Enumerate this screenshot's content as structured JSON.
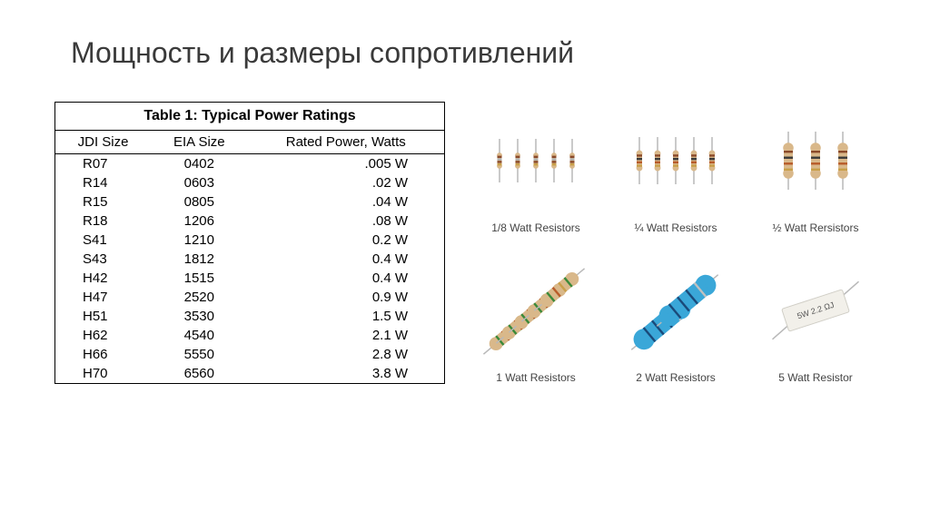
{
  "title": "Мощность и размеры сопротивлений",
  "table": {
    "caption": "Table 1: Typical Power Ratings",
    "columns": [
      "JDI Size",
      "EIA Size",
      "Rated Power, Watts"
    ],
    "rows": [
      [
        "R07",
        "0402",
        ".005 W"
      ],
      [
        "R14",
        "0603",
        ".02 W"
      ],
      [
        "R15",
        "0805",
        ".04 W"
      ],
      [
        "R18",
        "1206",
        ".08 W"
      ],
      [
        "S41",
        "1210",
        "0.2 W"
      ],
      [
        "S43",
        "1812",
        "0.4 W"
      ],
      [
        "H42",
        "1515",
        "0.4 W"
      ],
      [
        "H47",
        "2520",
        "0.9 W"
      ],
      [
        "H51",
        "3530",
        "1.5 W"
      ],
      [
        "H62",
        "4540",
        "2.1 W"
      ],
      [
        "H66",
        "5550",
        "2.8 W"
      ],
      [
        "H70",
        "6560",
        "3.8 W"
      ]
    ]
  },
  "gallery": [
    {
      "label": "1/8 Watt Resistors",
      "type": "array5",
      "body": "#d9b88a",
      "bands": [
        "#8a4a2a",
        "#b0b0b0",
        "#8a4a2a",
        "#c9a04a"
      ],
      "bodyW": 12,
      "bodyH": 5
    },
    {
      "label": "¼ Watt Resistors",
      "type": "array5",
      "body": "#d9b88a",
      "bands": [
        "#8a4a2a",
        "#3a3a3a",
        "#b85c2a",
        "#c9a04a"
      ],
      "bodyW": 16,
      "bodyH": 6
    },
    {
      "label": "½ Watt Rersistors",
      "type": "array3",
      "body": "#d9b88a",
      "bands": [
        "#8a4a2a",
        "#3a3a3a",
        "#b85c2a",
        "#c9a04a"
      ],
      "bodyW": 28,
      "bodyH": 10
    },
    {
      "label": "1 Watt Resistors",
      "type": "diag5",
      "body": "#d9b88a",
      "bands": [
        "#3a8a3a",
        "#b85c2a",
        "#c9a04a",
        "#3a8a3a"
      ],
      "bodyW": 36,
      "bodyH": 13
    },
    {
      "label": "2 Watt Resistors",
      "type": "diag2",
      "body": "#3aa7d8",
      "bands": [
        "#1a4a7a",
        "#1a4a7a",
        "#1a4a7a",
        "#c0c0c0"
      ],
      "bodyW": 52,
      "bodyH": 20
    },
    {
      "label": "5 Watt Resistor",
      "type": "ceramic",
      "body": "#f2f0ea",
      "text": "5W 2.2 ΩJ",
      "bodyW": 70,
      "bodyH": 26
    }
  ],
  "style": {
    "leadColor": "#b8b8b8",
    "textColor": "#3a3a3a",
    "borderColor": "#000000",
    "background": "#ffffff"
  }
}
